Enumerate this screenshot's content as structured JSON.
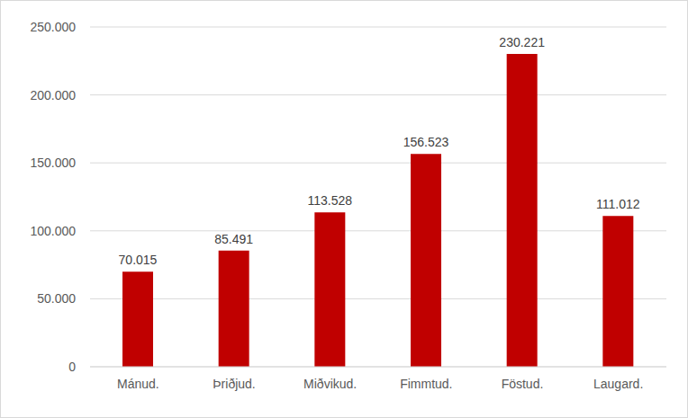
{
  "chart_data": {
    "type": "bar",
    "categories": [
      "Mánud.",
      "Þriðjud.",
      "Miðvikud.",
      "Fimmtud.",
      "Föstud.",
      "Laugard."
    ],
    "values": [
      70015,
      85491,
      113528,
      156523,
      230221,
      111012
    ],
    "value_labels": [
      "70.015",
      "85.491",
      "113.528",
      "156.523",
      "230.221",
      "111.012"
    ],
    "data_labels": true,
    "color": "#c00000",
    "ylim": [
      0,
      250000
    ],
    "yticks": [
      0,
      {
        "value": 50000,
        "label": "50.000"
      },
      {
        "value": 100000,
        "label": "100.000"
      },
      {
        "value": 150000,
        "label": "150.000"
      },
      {
        "value": 200000,
        "label": "200.000"
      },
      {
        "value": 250000,
        "label": "250.000"
      }
    ],
    "grid": true
  }
}
